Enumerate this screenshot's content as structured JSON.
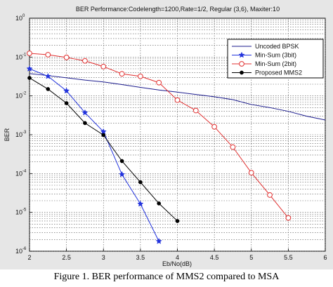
{
  "caption": "Figure 1.    BER performance of MMS2 compared to MSA",
  "chart_data": {
    "type": "line",
    "title": "BER Performance:Codelength=1200,Rate=1/2, Regular (3,6), Maxiter:10",
    "xlabel": "Eb/No(dB)",
    "ylabel": "BER",
    "xlim": [
      2,
      6
    ],
    "ylim": [
      1e-06,
      1
    ],
    "yscale": "log",
    "grid": true,
    "legend_position": "top-right",
    "x_ticks": [
      "2",
      "2.5",
      "3",
      "3.5",
      "4",
      "4.5",
      "5",
      "5.5",
      "6"
    ],
    "y_ticks": [
      {
        "base": "10",
        "exp": "0",
        "value": 1
      },
      {
        "base": "10",
        "exp": "-1",
        "value": 0.1
      },
      {
        "base": "10",
        "exp": "-2",
        "value": 0.01
      },
      {
        "base": "10",
        "exp": "-3",
        "value": 0.001
      },
      {
        "base": "10",
        "exp": "-4",
        "value": 0.0001
      },
      {
        "base": "10",
        "exp": "-5",
        "value": 1e-05
      },
      {
        "base": "10",
        "exp": "-6",
        "value": 1e-06
      }
    ],
    "series": [
      {
        "name": "Uncoded BPSK",
        "color": "#1a1a8c",
        "marker": "none",
        "x": [
          2,
          2.25,
          2.5,
          2.75,
          3,
          3.25,
          3.5,
          3.75,
          4,
          4.25,
          4.5,
          4.75,
          5,
          5.25,
          5.5,
          5.75,
          6
        ],
        "y": [
          0.0375,
          0.0334,
          0.0293,
          0.0255,
          0.0229,
          0.0196,
          0.0166,
          0.0142,
          0.0125,
          0.0109,
          0.0095,
          0.008,
          0.006,
          0.005,
          0.004,
          0.003,
          0.0024
        ]
      },
      {
        "name": "Min-Sum (3bit)",
        "color": "#2233dd",
        "marker": "star",
        "x": [
          2,
          2.25,
          2.5,
          2.75,
          3,
          3.25,
          3.5,
          3.75
        ],
        "y": [
          0.05,
          0.032,
          0.0135,
          0.0037,
          0.0012,
          9.5e-05,
          1.65e-05,
          1.8e-06
        ]
      },
      {
        "name": "Min-Sum (2bit)",
        "color": "#e03030",
        "marker": "circle",
        "x": [
          2,
          2.25,
          2.5,
          2.75,
          3,
          3.25,
          3.5,
          3.75,
          4,
          4.25,
          4.5,
          4.75,
          5,
          5.25,
          5.5
        ],
        "y": [
          0.125,
          0.115,
          0.098,
          0.08,
          0.057,
          0.037,
          0.032,
          0.022,
          0.0078,
          0.0042,
          0.0016,
          0.00048,
          0.000105,
          2.8e-05,
          7.2e-06
        ]
      },
      {
        "name": "Proposed MMS2",
        "color": "#000000",
        "marker": "dot",
        "x": [
          2,
          2.25,
          2.5,
          2.75,
          3,
          3.25,
          3.5,
          3.75,
          4
        ],
        "y": [
          0.029,
          0.015,
          0.0065,
          0.002,
          0.00098,
          0.00021,
          6e-05,
          1.7e-05,
          6e-06
        ]
      }
    ]
  }
}
